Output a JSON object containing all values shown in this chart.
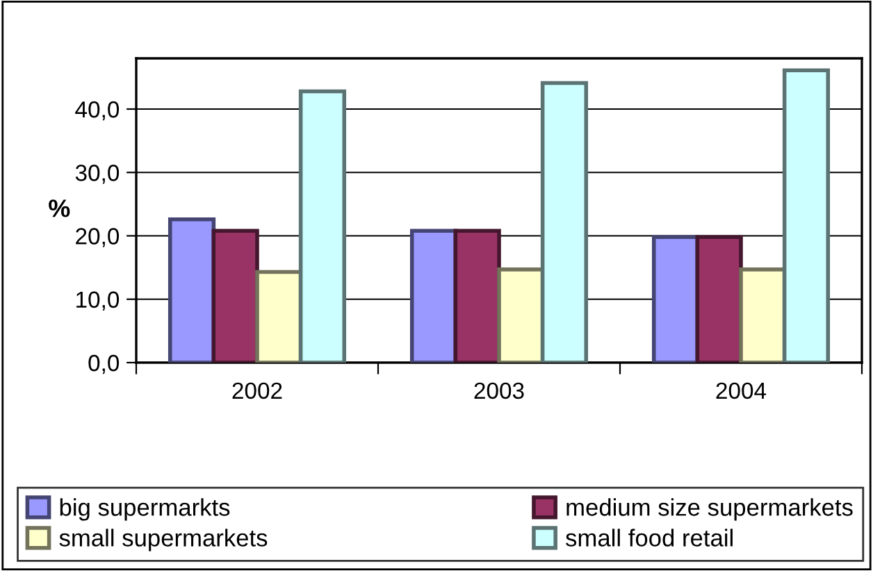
{
  "chart_data": {
    "type": "bar",
    "ylabel": "%",
    "categories": [
      "2002",
      "2003",
      "2004"
    ],
    "series": [
      {
        "name": "big supermarkts",
        "color": "#9999ff",
        "values": [
          22.6,
          20.8,
          19.8
        ]
      },
      {
        "name": "medium size supermarkets",
        "color": "#993366",
        "values": [
          20.8,
          20.8,
          19.8
        ]
      },
      {
        "name": "small supermarkets",
        "color": "#ffffcc",
        "values": [
          14.3,
          14.7,
          14.7
        ]
      },
      {
        "name": "small food retail",
        "color": "#ccffff",
        "values": [
          42.8,
          44.1,
          46.1
        ]
      }
    ],
    "ylim": [
      0,
      48
    ],
    "yticks": [
      {
        "value": 0,
        "label": "0,0"
      },
      {
        "value": 10,
        "label": "10,0"
      },
      {
        "value": 20,
        "label": "20,0"
      },
      {
        "value": 30,
        "label": "30,0"
      },
      {
        "value": 40,
        "label": "40,0"
      }
    ],
    "grid": "y",
    "legend": "bottom"
  }
}
